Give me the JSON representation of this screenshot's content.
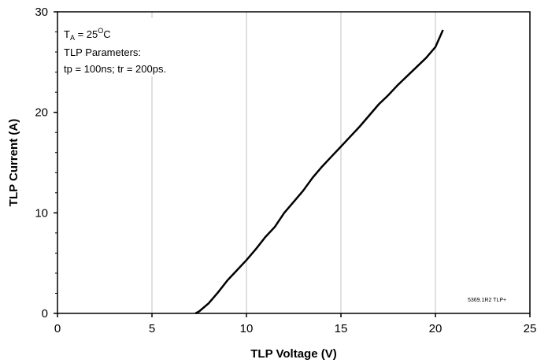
{
  "chart_data": {
    "type": "line",
    "xlabel": "TLP Voltage (V)",
    "ylabel": "TLP Current (A)",
    "xlim": [
      0,
      25
    ],
    "ylim": [
      0,
      30
    ],
    "x_ticks": [
      "0",
      "5",
      "10",
      "15",
      "20",
      "25"
    ],
    "y_ticks": [
      "0",
      "10",
      "20",
      "30"
    ],
    "grid": "vertical",
    "annotation": {
      "line1_T": "T",
      "line1_sub": "A",
      "line1_eq": " = 25",
      "line1_sup": "O",
      "line1_unit": "C",
      "line2": "TLP  Parameters:",
      "line3": "tp = 100ns; tr = 200ps."
    },
    "figure_code": "5369.1R2 TLP+",
    "series": [
      {
        "color": "#000000",
        "x": [
          7.3,
          7.5,
          8.0,
          8.5,
          9.0,
          9.5,
          10.0,
          10.5,
          11.0,
          11.5,
          12.0,
          12.5,
          13.0,
          13.5,
          14.0,
          14.5,
          15.0,
          15.5,
          16.0,
          16.5,
          17.0,
          17.5,
          18.0,
          18.5,
          19.0,
          19.5,
          20.0,
          20.4
        ],
        "y": [
          0.0,
          0.2,
          1.0,
          2.1,
          3.3,
          4.3,
          5.3,
          6.4,
          7.6,
          8.6,
          10.0,
          11.1,
          12.2,
          13.5,
          14.6,
          15.6,
          16.6,
          17.6,
          18.6,
          19.7,
          20.8,
          21.7,
          22.7,
          23.6,
          24.5,
          25.4,
          26.5,
          28.2
        ]
      }
    ]
  }
}
